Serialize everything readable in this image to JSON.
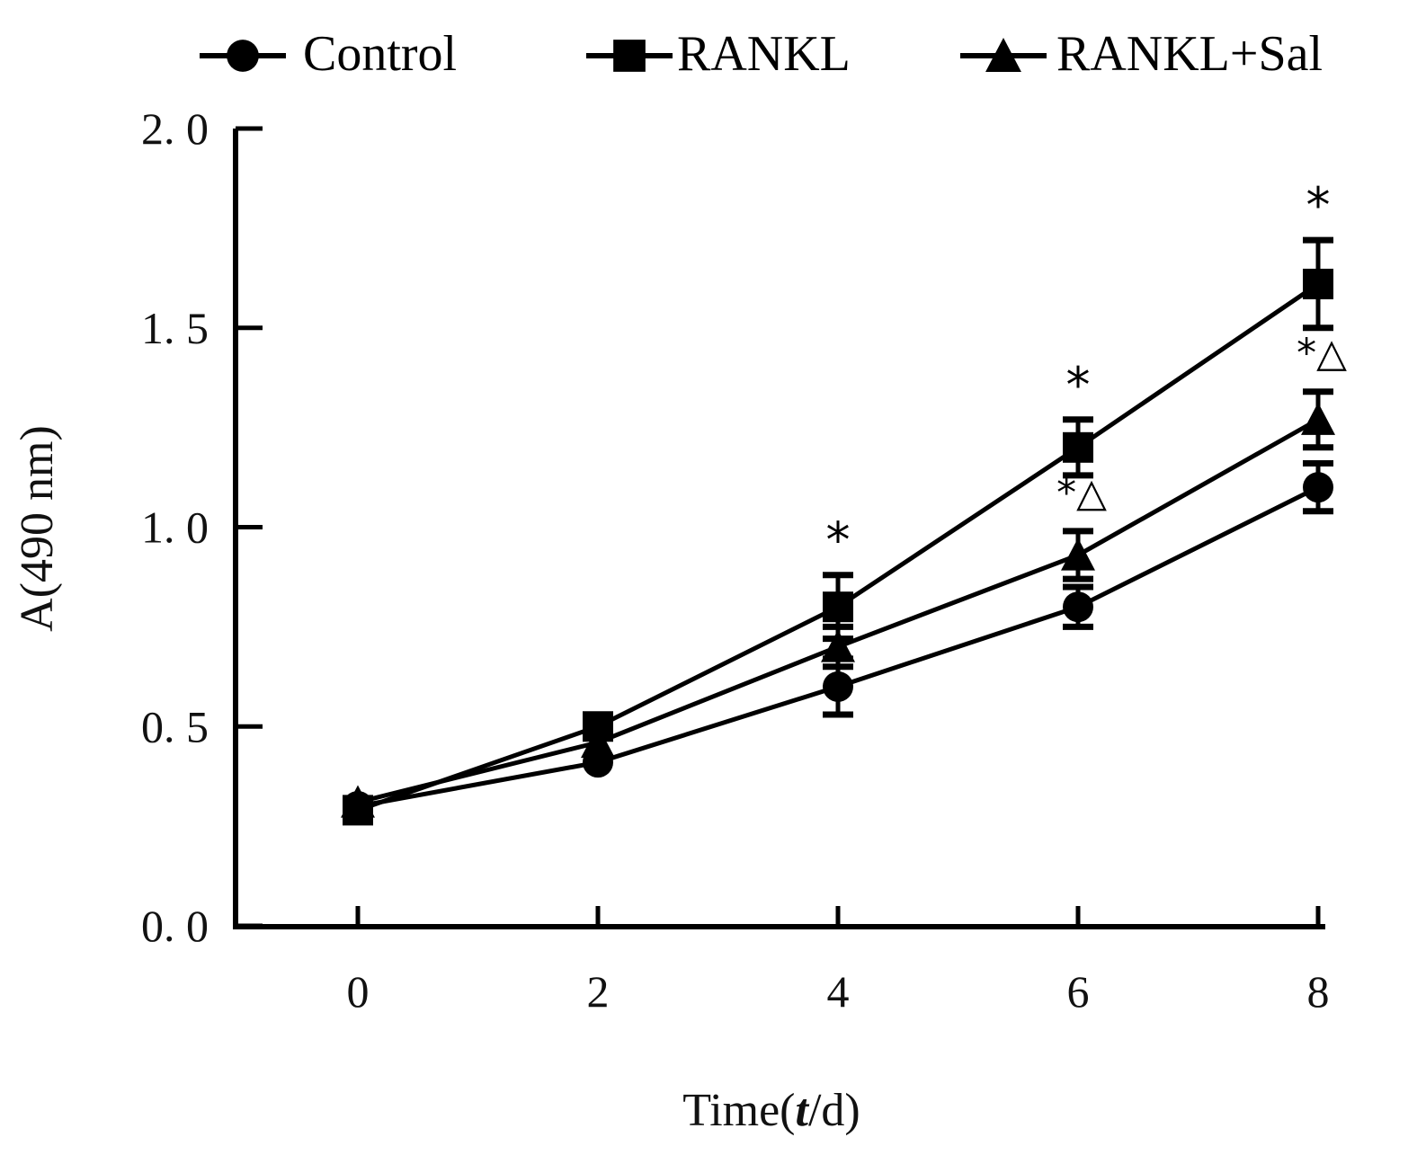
{
  "chart_data": {
    "type": "line",
    "title": "",
    "xlabel_parts": [
      "Time(",
      "t",
      "/d)"
    ],
    "xlabel": "Time(t/d)",
    "ylabel": "A(490 nm)",
    "x": [
      0,
      2,
      4,
      6,
      8
    ],
    "x_tick_labels": [
      "0",
      "2",
      "4",
      "6",
      "8"
    ],
    "y_tick_values": [
      0.0,
      0.5,
      1.0,
      1.5,
      2.0
    ],
    "y_tick_labels": [
      "0. 0",
      "0. 5",
      "1. 0",
      "1. 5",
      "2. 0"
    ],
    "xlim": [
      -1,
      8
    ],
    "ylim": [
      0,
      2.0
    ],
    "grid": false,
    "legend_position": "top",
    "series": [
      {
        "name": "Control",
        "marker": "circle",
        "values": [
          0.3,
          0.41,
          0.6,
          0.8,
          1.1
        ],
        "errors": [
          0.0,
          0.0,
          0.07,
          0.05,
          0.06
        ],
        "annotations": [
          "",
          "",
          "",
          "",
          ""
        ]
      },
      {
        "name": "RANKL",
        "marker": "square",
        "values": [
          0.29,
          0.5,
          0.8,
          1.2,
          1.61
        ],
        "errors": [
          0.0,
          0.0,
          0.08,
          0.07,
          0.11
        ],
        "annotations": [
          "",
          "",
          "*",
          "*",
          "*"
        ]
      },
      {
        "name": "RANKL+Sal",
        "marker": "triangle",
        "values": [
          0.31,
          0.46,
          0.7,
          0.93,
          1.27
        ],
        "errors": [
          0.0,
          0.0,
          0.05,
          0.06,
          0.07
        ],
        "annotations": [
          "",
          "",
          "",
          "*△",
          "*△"
        ]
      }
    ],
    "colors": {
      "line": "#000000",
      "background": "#ffffff"
    }
  }
}
